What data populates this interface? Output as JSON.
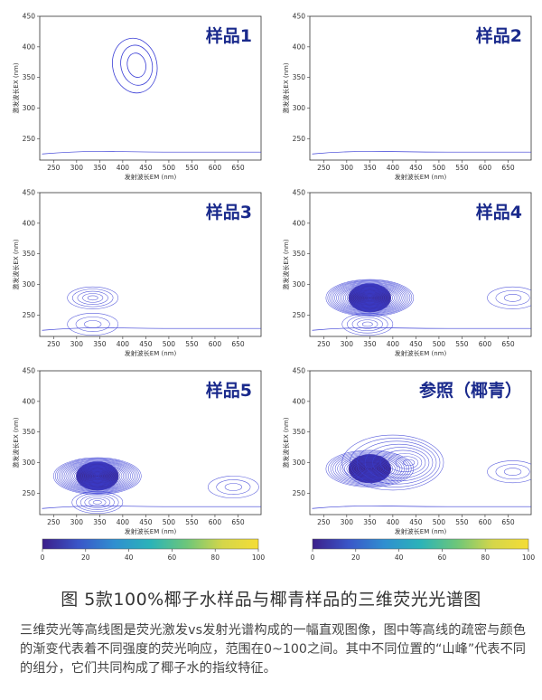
{
  "figure": {
    "caption_title": "图  5款100%椰子水样品与椰青样品的三维荧光光谱图",
    "caption_body": "三维荧光等高线图是荧光激发vs发射光谱构成的一幅直观图像，图中等高线的疏密与颜色的渐变代表着不同强度的荧光响应，范围在0~100之间。其中不同位置的“山峰”代表不同的组分，它们共同构成了椰子水的指纹特征。"
  },
  "colors": {
    "panel_title": "#1a2a8c",
    "contour_line": "#3b3fd6",
    "colormap": [
      "#3b1f8a",
      "#3a56c8",
      "#2f8fd0",
      "#2bb3b8",
      "#6cc67a",
      "#d4d64a",
      "#f5dd35"
    ]
  },
  "chart_data": [
    {
      "type": "heatmap",
      "subtype": "contour",
      "title": "样品1",
      "xlabel": "发射波长EM (nm)",
      "ylabel": "激发波长EX (nm)",
      "xlim": [
        220,
        700
      ],
      "ylim": [
        215,
        450
      ],
      "xticks": [
        250,
        300,
        350,
        400,
        450,
        500,
        550,
        600,
        650
      ],
      "yticks": [
        250,
        300,
        350,
        400,
        450
      ],
      "peaks": [
        {
          "em": 430,
          "ex": 370,
          "intensity": 4,
          "kind": "ring"
        }
      ],
      "baseline_ex": 228,
      "has_colorbar": false
    },
    {
      "type": "heatmap",
      "subtype": "contour",
      "title": "样品2",
      "xlabel": "发射波长EM (nm)",
      "ylabel": "激发波长EX (nm)",
      "xlim": [
        220,
        700
      ],
      "ylim": [
        215,
        450
      ],
      "xticks": [
        250,
        300,
        350,
        400,
        450,
        500,
        550,
        600,
        650
      ],
      "yticks": [
        250,
        300,
        350,
        400,
        450
      ],
      "peaks": [],
      "baseline_ex": 228,
      "has_colorbar": false
    },
    {
      "type": "heatmap",
      "subtype": "contour",
      "title": "样品3",
      "xlabel": "发射波长EM (nm)",
      "ylabel": "激发波长EX (nm)",
      "xlim": [
        220,
        700
      ],
      "ylim": [
        215,
        450
      ],
      "xticks": [
        250,
        300,
        350,
        400,
        450,
        500,
        550,
        600,
        650
      ],
      "yticks": [
        250,
        300,
        350,
        400,
        450
      ],
      "peaks": [
        {
          "em": 335,
          "ex": 278,
          "intensity": 20,
          "kind": "peak"
        },
        {
          "em": 335,
          "ex": 235,
          "intensity": 10,
          "kind": "peak"
        }
      ],
      "baseline_ex": 228,
      "has_colorbar": false
    },
    {
      "type": "heatmap",
      "subtype": "contour",
      "title": "样品4",
      "xlabel": "发射波长EM (nm)",
      "ylabel": "激发波长EX (nm)",
      "xlim": [
        220,
        700
      ],
      "ylim": [
        215,
        450
      ],
      "xticks": [
        250,
        300,
        350,
        400,
        450,
        500,
        550,
        600,
        650
      ],
      "yticks": [
        250,
        300,
        350,
        400,
        450
      ],
      "peaks": [
        {
          "em": 350,
          "ex": 278,
          "intensity": 100,
          "kind": "peak"
        },
        {
          "em": 345,
          "ex": 235,
          "intensity": 20,
          "kind": "peak"
        },
        {
          "em": 660,
          "ex": 278,
          "intensity": 5,
          "kind": "peak"
        }
      ],
      "baseline_ex": 228,
      "has_colorbar": false
    },
    {
      "type": "heatmap",
      "subtype": "contour",
      "title": "样品5",
      "xlabel": "发射波长EM (nm)",
      "ylabel": "激发波长EX (nm)",
      "xlim": [
        220,
        700
      ],
      "ylim": [
        215,
        450
      ],
      "xticks": [
        250,
        300,
        350,
        400,
        450,
        500,
        550,
        600,
        650
      ],
      "yticks": [
        250,
        300,
        350,
        400,
        450
      ],
      "peaks": [
        {
          "em": 345,
          "ex": 278,
          "intensity": 100,
          "kind": "peak"
        },
        {
          "em": 345,
          "ex": 235,
          "intensity": 25,
          "kind": "peak"
        },
        {
          "em": 640,
          "ex": 260,
          "intensity": 5,
          "kind": "peak"
        }
      ],
      "baseline_ex": 228,
      "has_colorbar": true,
      "colorbar": {
        "min": 0,
        "max": 100,
        "ticks": [
          0,
          20,
          40,
          60,
          80,
          100
        ]
      }
    },
    {
      "type": "heatmap",
      "subtype": "contour",
      "title": "参照（椰青）",
      "xlabel": "发射波长EM (nm)",
      "ylabel": "激发波长EX (nm)",
      "xlim": [
        220,
        700
      ],
      "ylim": [
        215,
        450
      ],
      "xticks": [
        250,
        300,
        350,
        400,
        450,
        500,
        550,
        600,
        650
      ],
      "yticks": [
        250,
        300,
        350,
        400,
        450
      ],
      "peaks": [
        {
          "em": 350,
          "ex": 290,
          "intensity": 75,
          "kind": "peak"
        },
        {
          "em": 400,
          "ex": 300,
          "intensity": 12,
          "kind": "broad"
        },
        {
          "em": 660,
          "ex": 285,
          "intensity": 5,
          "kind": "peak"
        }
      ],
      "baseline_ex": 228,
      "has_colorbar": true,
      "colorbar": {
        "min": 0,
        "max": 100,
        "ticks": [
          0,
          20,
          40,
          60,
          80,
          100
        ]
      }
    }
  ]
}
